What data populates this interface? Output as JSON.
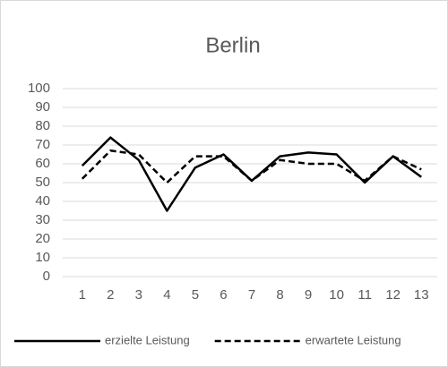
{
  "chart_data": {
    "type": "line",
    "title": "Berlin",
    "categories": [
      "1",
      "2",
      "3",
      "4",
      "5",
      "6",
      "7",
      "8",
      "9",
      "10",
      "11",
      "12",
      "13"
    ],
    "series": [
      {
        "name": "erzielte Leistung",
        "color": "#000000",
        "dash": false,
        "values": [
          59,
          74,
          62,
          35,
          58,
          65,
          51,
          64,
          66,
          65,
          50,
          64,
          53
        ]
      },
      {
        "name": "erwartete Leistung",
        "color": "#000000",
        "dash": true,
        "values": [
          52,
          67,
          65,
          50,
          64,
          64,
          51,
          62,
          60,
          60,
          51,
          64,
          57
        ]
      }
    ],
    "ylim": [
      0,
      100
    ],
    "yticks": [
      0,
      10,
      20,
      30,
      40,
      50,
      60,
      70,
      80,
      90,
      100
    ],
    "grid": true,
    "legend": "bottom"
  }
}
